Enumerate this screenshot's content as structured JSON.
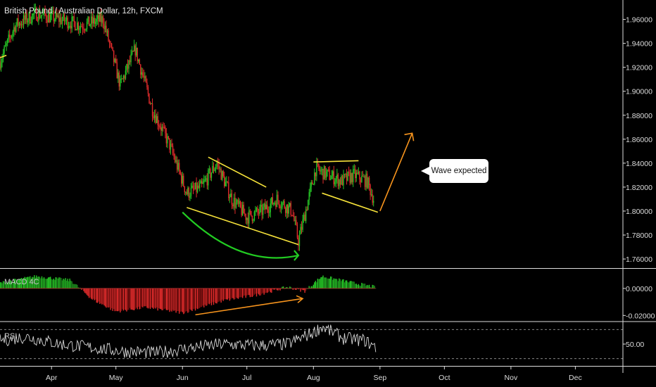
{
  "header": {
    "title": "British Pound / Australian Dollar, 12h, FXCM"
  },
  "annotation": {
    "callout_text": "Wave expected"
  },
  "colors": {
    "up": "#26c726",
    "down": "#e02b2b",
    "yellow": "#f7e33a",
    "orange": "#f7941d",
    "green_arc": "#22cc22",
    "rsi": "#d8d8d8"
  },
  "chart_data": [
    {
      "type": "candlestick",
      "title": "British Pound / Australian Dollar, 12h, FXCM",
      "x_ticks": [
        "Apr",
        "May",
        "Jun",
        "Jul",
        "Aug",
        "Sep",
        "Oct",
        "Nov",
        "Dec"
      ],
      "y_ticks": [
        "1.96000",
        "1.94000",
        "1.92000",
        "1.90000",
        "1.88000",
        "1.86000",
        "1.84000",
        "1.82000",
        "1.80000",
        "1.78000",
        "1.76000"
      ],
      "ylim": [
        1.753,
        1.975
      ],
      "path_dates": [
        "2019-03-08",
        "2019-03-15",
        "2019-03-25",
        "2019-04-05",
        "2019-04-15",
        "2019-04-25",
        "2019-05-03",
        "2019-05-10",
        "2019-05-18",
        "2019-05-26",
        "2019-06-03",
        "2019-06-10",
        "2019-06-17",
        "2019-06-24",
        "2019-07-01",
        "2019-07-08",
        "2019-07-15",
        "2019-07-22",
        "2019-07-25",
        "2019-07-29",
        "2019-08-02",
        "2019-08-08",
        "2019-08-14",
        "2019-08-20",
        "2019-08-26",
        "2019-08-29"
      ],
      "path_closes": [
        1.925,
        1.955,
        1.965,
        1.96,
        1.955,
        1.96,
        1.905,
        1.935,
        1.885,
        1.855,
        1.815,
        1.82,
        1.84,
        1.81,
        1.795,
        1.8,
        1.81,
        1.8,
        1.775,
        1.805,
        1.835,
        1.83,
        1.825,
        1.83,
        1.825,
        1.81
      ],
      "grid": false
    },
    {
      "type": "bar",
      "name": "MACD 4C",
      "y_ticks": [
        "0.00000",
        "-0.02000"
      ],
      "ylim": [
        -0.024,
        0.014
      ],
      "path_dates": [
        "2019-03-08",
        "2019-03-25",
        "2019-04-10",
        "2019-04-20",
        "2019-05-01",
        "2019-05-15",
        "2019-06-01",
        "2019-06-20",
        "2019-07-05",
        "2019-07-20",
        "2019-07-28",
        "2019-08-05",
        "2019-08-20",
        "2019-08-30"
      ],
      "path_values": [
        0.004,
        0.009,
        0.006,
        -0.008,
        -0.017,
        -0.014,
        -0.018,
        -0.009,
        -0.005,
        0.001,
        -0.002,
        0.009,
        0.004,
        0.001
      ]
    },
    {
      "type": "line",
      "name": "RSI",
      "y_ticks": [
        "50.00"
      ],
      "ylim": [
        20,
        80
      ],
      "bands": [
        70,
        30
      ],
      "path_dates": [
        "2019-03-08",
        "2019-03-20",
        "2019-04-05",
        "2019-04-20",
        "2019-05-05",
        "2019-05-20",
        "2019-06-05",
        "2019-06-20",
        "2019-07-05",
        "2019-07-20",
        "2019-08-01",
        "2019-08-05",
        "2019-08-15",
        "2019-08-25",
        "2019-08-30"
      ],
      "path_values": [
        55,
        60,
        50,
        45,
        40,
        38,
        45,
        50,
        48,
        50,
        66,
        74,
        58,
        55,
        45
      ]
    }
  ]
}
